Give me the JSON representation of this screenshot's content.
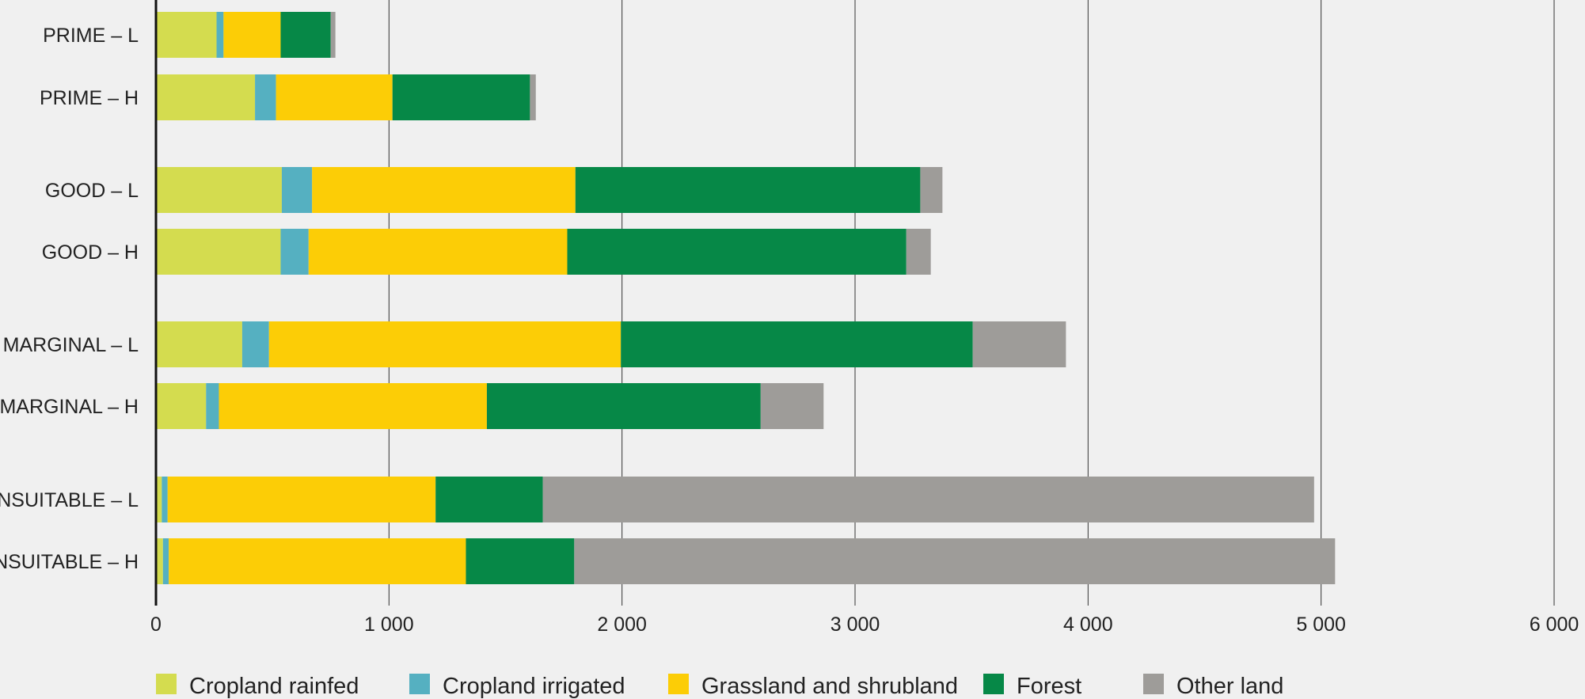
{
  "chart_data": {
    "type": "bar",
    "orientation": "horizontal",
    "stacked": true,
    "title": "",
    "xlabel": "",
    "ylabel": "",
    "xlim": [
      0,
      6000
    ],
    "x_ticks": [
      0,
      1000,
      2000,
      3000,
      4000,
      5000,
      6000
    ],
    "x_tick_labels": [
      "0",
      "1 000",
      "2 000",
      "3 000",
      "4 000",
      "5 000",
      "6 000"
    ],
    "grid": "vertical",
    "legend_position": "bottom",
    "categories": [
      "PRIME – L",
      "PRIME – H",
      "GOOD – L",
      "GOOD – H",
      "MARGINAL – L",
      "MARGINAL – H",
      "UNSUITABLE – L",
      "UNSUITABLE – H"
    ],
    "series": [
      {
        "name": "Cropland rainfed",
        "color": "#d4dc4f",
        "values": [
          260,
          425,
          540,
          535,
          370,
          215,
          25,
          30
        ]
      },
      {
        "name": "Cropland irrigated",
        "color": "#55b0c1",
        "values": [
          30,
          90,
          130,
          120,
          115,
          55,
          25,
          25
        ]
      },
      {
        "name": "Grassland and shrubland",
        "color": "#fccd06",
        "values": [
          245,
          500,
          1130,
          1110,
          1510,
          1150,
          1150,
          1275
        ]
      },
      {
        "name": "Forest",
        "color": "#068847",
        "values": [
          215,
          590,
          1480,
          1455,
          1510,
          1175,
          460,
          465
        ]
      },
      {
        "name": "Other land",
        "color": "#9e9c99",
        "values": [
          20,
          25,
          95,
          105,
          400,
          270,
          3310,
          3265
        ]
      }
    ]
  }
}
